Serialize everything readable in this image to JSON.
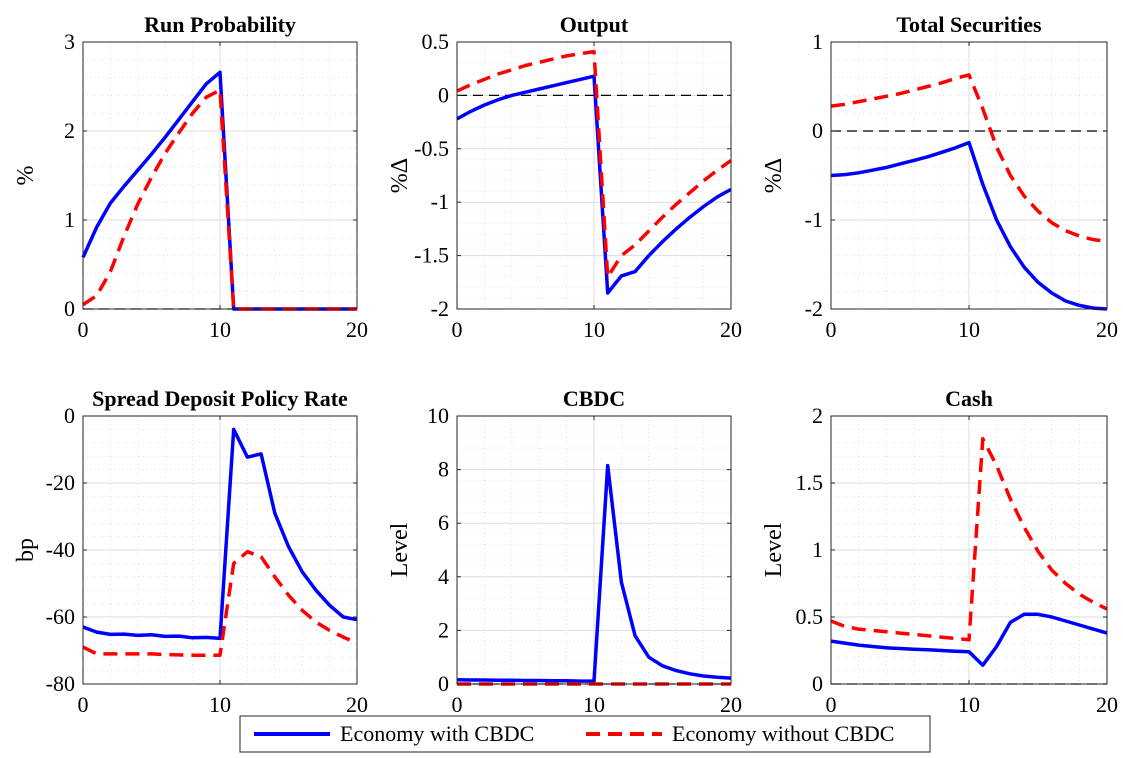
{
  "chart_data": [
    {
      "type": "line",
      "title": "Run Probability",
      "ylabel": "%",
      "xlim": [
        0,
        20
      ],
      "ylim": [
        0,
        3
      ],
      "xticks": [
        0,
        10,
        20
      ],
      "yticks": [
        0,
        1,
        2,
        3
      ],
      "zero_line": true,
      "grid": true,
      "series": [
        {
          "name": "Economy with CBDC",
          "x": [
            0,
            1,
            2,
            3,
            4,
            5,
            6,
            7,
            8,
            9,
            10,
            11,
            12,
            13,
            14,
            15,
            16,
            17,
            18,
            19,
            20
          ],
          "y": [
            0.58,
            0.92,
            1.19,
            1.38,
            1.56,
            1.74,
            1.93,
            2.13,
            2.33,
            2.53,
            2.66,
            0,
            0,
            0,
            0,
            0,
            0,
            0,
            0,
            0,
            0
          ]
        },
        {
          "name": "Economy without CBDC",
          "x": [
            0,
            1,
            2,
            3,
            4,
            5,
            6,
            7,
            8,
            9,
            10,
            11,
            12,
            13,
            14,
            15,
            16,
            17,
            18,
            19,
            20
          ],
          "y": [
            0.05,
            0.15,
            0.42,
            0.82,
            1.18,
            1.48,
            1.75,
            1.98,
            2.2,
            2.38,
            2.46,
            0,
            0,
            0,
            0,
            0,
            0,
            0,
            0,
            0,
            0
          ]
        }
      ]
    },
    {
      "type": "line",
      "title": "Output",
      "ylabel": "%Δ",
      "xlim": [
        0,
        20
      ],
      "ylim": [
        -2,
        0.5
      ],
      "xticks": [
        0,
        10,
        20
      ],
      "yticks": [
        -2,
        -1.5,
        -1,
        -0.5,
        0,
        0.5
      ],
      "zero_line": true,
      "grid": true,
      "series": [
        {
          "name": "Economy with CBDC",
          "x": [
            0,
            1,
            2,
            3,
            4,
            5,
            6,
            7,
            8,
            9,
            10,
            11,
            12,
            13,
            14,
            15,
            16,
            17,
            18,
            19,
            20
          ],
          "y": [
            -0.22,
            -0.15,
            -0.09,
            -0.04,
            0.0,
            0.03,
            0.06,
            0.09,
            0.12,
            0.15,
            0.18,
            -1.85,
            -1.69,
            -1.65,
            -1.5,
            -1.37,
            -1.25,
            -1.14,
            -1.04,
            -0.95,
            -0.88
          ]
        },
        {
          "name": "Economy without CBDC",
          "x": [
            0,
            1,
            2,
            3,
            4,
            5,
            6,
            7,
            8,
            9,
            10,
            11,
            12,
            13,
            14,
            15,
            16,
            17,
            18,
            19,
            20
          ],
          "y": [
            0.04,
            0.1,
            0.15,
            0.2,
            0.24,
            0.28,
            0.31,
            0.34,
            0.37,
            0.39,
            0.41,
            -1.7,
            -1.5,
            -1.4,
            -1.27,
            -1.14,
            -1.02,
            -0.91,
            -0.8,
            -0.7,
            -0.61
          ]
        }
      ]
    },
    {
      "type": "line",
      "title": "Total Securities",
      "ylabel": "%Δ",
      "xlim": [
        0,
        20
      ],
      "ylim": [
        -2,
        1
      ],
      "xticks": [
        0,
        10,
        20
      ],
      "yticks": [
        -2,
        -1,
        0,
        1
      ],
      "zero_line": true,
      "grid": true,
      "series": [
        {
          "name": "Economy with CBDC",
          "x": [
            0,
            1,
            2,
            3,
            4,
            5,
            6,
            7,
            8,
            9,
            10,
            11,
            12,
            13,
            14,
            15,
            16,
            17,
            18,
            19,
            20
          ],
          "y": [
            -0.5,
            -0.49,
            -0.47,
            -0.44,
            -0.41,
            -0.37,
            -0.33,
            -0.29,
            -0.24,
            -0.19,
            -0.13,
            -0.6,
            -1.0,
            -1.3,
            -1.53,
            -1.7,
            -1.82,
            -1.91,
            -1.96,
            -1.99,
            -2.0
          ]
        },
        {
          "name": "Economy without CBDC",
          "x": [
            0,
            1,
            2,
            3,
            4,
            5,
            6,
            7,
            8,
            9,
            10,
            11,
            12,
            13,
            14,
            15,
            16,
            17,
            18,
            19,
            20
          ],
          "y": [
            0.28,
            0.3,
            0.33,
            0.36,
            0.39,
            0.42,
            0.46,
            0.5,
            0.54,
            0.59,
            0.63,
            0.25,
            -0.18,
            -0.5,
            -0.73,
            -0.9,
            -1.03,
            -1.12,
            -1.18,
            -1.22,
            -1.24
          ]
        }
      ]
    },
    {
      "type": "line",
      "title": "Spread Deposit Policy Rate",
      "ylabel": "bp",
      "xlim": [
        0,
        20
      ],
      "ylim": [
        -80,
        0
      ],
      "xticks": [
        0,
        10,
        20
      ],
      "yticks": [
        -80,
        -60,
        -40,
        -20,
        0
      ],
      "zero_line": false,
      "grid": true,
      "series": [
        {
          "name": "Economy with CBDC",
          "x": [
            0,
            1,
            2,
            3,
            4,
            5,
            6,
            7,
            8,
            9,
            10,
            11,
            12,
            13,
            14,
            15,
            16,
            17,
            18,
            19,
            20
          ],
          "y": [
            -63,
            -64.5,
            -65.2,
            -65.1,
            -65.5,
            -65.3,
            -65.8,
            -65.7,
            -66.2,
            -66.1,
            -66.4,
            -4,
            -12.3,
            -11.3,
            -29,
            -39,
            -46.5,
            -52,
            -56.5,
            -60,
            -60.8
          ]
        },
        {
          "name": "Economy without CBDC",
          "x": [
            0,
            1,
            2,
            3,
            4,
            5,
            6,
            7,
            8,
            9,
            10,
            11,
            12,
            13,
            14,
            15,
            16,
            17,
            18,
            19,
            20
          ],
          "y": [
            -69,
            -71,
            -71,
            -71,
            -71,
            -71,
            -71.2,
            -71.3,
            -71.4,
            -71.4,
            -71.4,
            -44,
            -40.5,
            -42,
            -48,
            -53.5,
            -58,
            -61.5,
            -64,
            -66,
            -67.8
          ]
        }
      ]
    },
    {
      "type": "line",
      "title": "CBDC",
      "ylabel": "Level",
      "xlim": [
        0,
        20
      ],
      "ylim": [
        0,
        10
      ],
      "xticks": [
        0,
        10,
        20
      ],
      "yticks": [
        0,
        2,
        4,
        6,
        8,
        10
      ],
      "zero_line": true,
      "grid": true,
      "series": [
        {
          "name": "Economy with CBDC",
          "x": [
            0,
            1,
            2,
            3,
            4,
            5,
            6,
            7,
            8,
            9,
            10,
            11,
            12,
            13,
            14,
            15,
            16,
            17,
            18,
            19,
            20
          ],
          "y": [
            0.16,
            0.15,
            0.15,
            0.14,
            0.14,
            0.13,
            0.13,
            0.12,
            0.12,
            0.11,
            0.11,
            8.15,
            3.8,
            1.8,
            1.0,
            0.68,
            0.5,
            0.38,
            0.3,
            0.25,
            0.22
          ]
        },
        {
          "name": "Economy without CBDC",
          "x": [
            0,
            20
          ],
          "y": [
            0,
            0
          ]
        }
      ]
    },
    {
      "type": "line",
      "title": "Cash",
      "ylabel": "Level",
      "xlim": [
        0,
        20
      ],
      "ylim": [
        0,
        2
      ],
      "xticks": [
        0,
        10,
        20
      ],
      "yticks": [
        0,
        0.5,
        1,
        1.5,
        2
      ],
      "zero_line": true,
      "grid": true,
      "series": [
        {
          "name": "Economy with CBDC",
          "x": [
            0,
            1,
            2,
            3,
            4,
            5,
            6,
            7,
            8,
            9,
            10,
            11,
            12,
            13,
            14,
            15,
            16,
            17,
            18,
            19,
            20
          ],
          "y": [
            0.32,
            0.305,
            0.29,
            0.28,
            0.27,
            0.265,
            0.26,
            0.255,
            0.25,
            0.245,
            0.24,
            0.14,
            0.28,
            0.46,
            0.52,
            0.52,
            0.5,
            0.47,
            0.44,
            0.41,
            0.38
          ]
        },
        {
          "name": "Economy without CBDC",
          "x": [
            0,
            1,
            2,
            3,
            4,
            5,
            6,
            7,
            8,
            9,
            10,
            11,
            12,
            13,
            14,
            15,
            16,
            17,
            18,
            19,
            20
          ],
          "y": [
            0.47,
            0.43,
            0.41,
            0.4,
            0.39,
            0.38,
            0.37,
            0.36,
            0.35,
            0.34,
            0.33,
            1.83,
            1.63,
            1.38,
            1.17,
            0.99,
            0.85,
            0.75,
            0.67,
            0.61,
            0.56
          ]
        }
      ]
    }
  ],
  "legend": {
    "placement": "bottom-center",
    "entries": [
      {
        "label": "Economy with CBDC",
        "color": "#0000FF",
        "style": "solid"
      },
      {
        "label": "Economy without CBDC",
        "color": "#FF0000",
        "style": "dashed"
      }
    ]
  },
  "colors": {
    "with_cbdc": "#0000FF",
    "without_cbdc": "#FF0000",
    "zero_line": "#000000"
  }
}
